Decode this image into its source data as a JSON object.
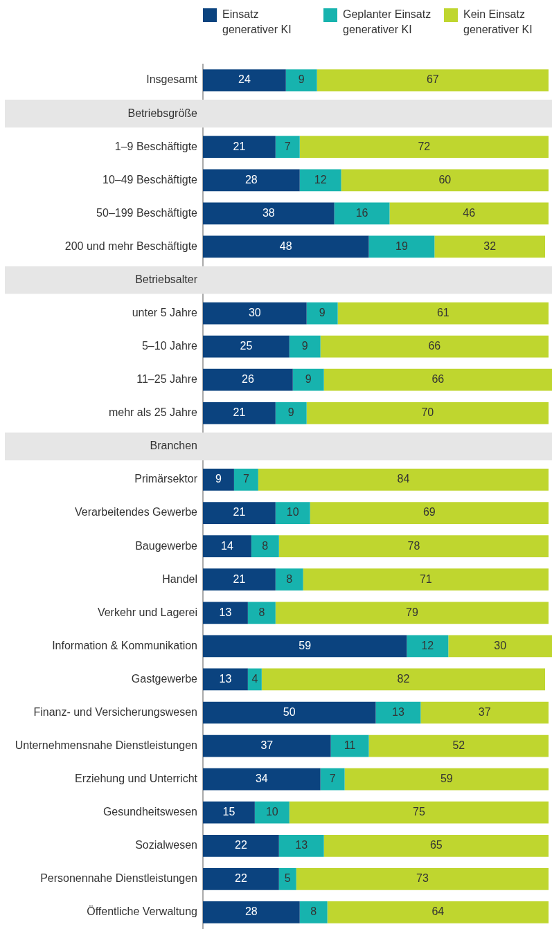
{
  "chart_data": {
    "type": "bar",
    "orientation": "horizontal",
    "stacked": true,
    "data_labels": true,
    "legend": "top",
    "tick_labels": "y",
    "xlim": [
      0,
      101
    ],
    "categories": [
      "Insgesamt",
      "Betriebsgröße",
      "1–9 Beschäftigte",
      "10–49 Beschäftigte",
      "50–199 Beschäftigte",
      "200 und mehr Beschäftigte",
      "Betriebsalter",
      "unter 5 Jahre",
      "5–10 Jahre",
      "11–25 Jahre",
      "mehr als 25 Jahre",
      "Branchen",
      "Primärsektor",
      "Verarbeitendes Gewerbe",
      "Baugewerbe",
      "Handel",
      "Verkehr und Lagerei",
      "Information & Kommunikation",
      "Gastgewerbe",
      "Finanz- und Versicherungswesen",
      "Unternehmensnahe Dienstleistungen",
      "Erziehung und Unterricht",
      "Gesundheitswesen",
      "Sozialwesen",
      "Personennahe Dienstleistungen",
      "Öffentliche Verwaltung"
    ],
    "bands": [
      {
        "axis": "y",
        "from": "Betriebsgröße",
        "to": "Betriebsgröße",
        "color": "#e6e6e6"
      },
      {
        "axis": "y",
        "from": "Betriebsalter",
        "to": "Betriebsalter",
        "color": "#e6e6e6"
      },
      {
        "axis": "y",
        "from": "Branchen",
        "to": "Branchen",
        "color": "#e6e6e6"
      }
    ],
    "series": [
      {
        "name": "Einsatz generativer KI",
        "color": "#0b437f",
        "values": [
          24,
          null,
          21,
          28,
          38,
          48,
          null,
          30,
          25,
          26,
          21,
          null,
          9,
          21,
          14,
          21,
          13,
          59,
          13,
          50,
          37,
          34,
          15,
          22,
          22,
          28
        ]
      },
      {
        "name": "Geplanter Einsatz generativer KI",
        "color": "#17b3ae",
        "values": [
          9,
          null,
          7,
          12,
          16,
          19,
          null,
          9,
          9,
          9,
          9,
          null,
          7,
          10,
          8,
          8,
          8,
          12,
          4,
          13,
          11,
          7,
          10,
          13,
          5,
          8
        ]
      },
      {
        "name": "Kein Einsatz generativer KI",
        "color": "#bfd62f",
        "values": [
          67,
          null,
          72,
          60,
          46,
          32,
          null,
          61,
          66,
          66,
          70,
          null,
          84,
          69,
          78,
          71,
          79,
          30,
          82,
          37,
          52,
          59,
          75,
          65,
          73,
          64
        ]
      }
    ]
  }
}
